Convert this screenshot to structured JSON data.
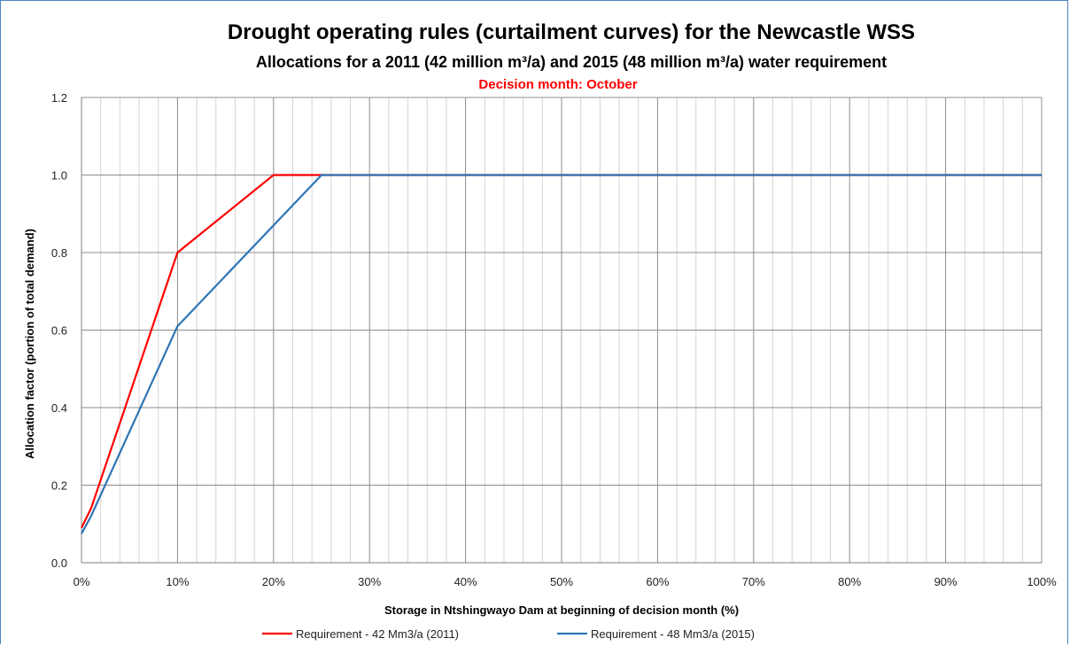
{
  "chart_data": {
    "type": "line",
    "title": "Drought operating rules (curtailment curves) for the Newcastle WSS",
    "subtitle": "Allocations for a 2011 (42 million m³/a) and 2015 (48 million m³/a) water requirement",
    "note": "Decision month: October",
    "xlabel": "Storage in Ntshingwayo Dam at beginning of decision month (%)",
    "ylabel": "Allocation factor (portion of total demand)",
    "xlim": [
      0,
      100
    ],
    "ylim": [
      0,
      1.2
    ],
    "x_ticks": [
      "0%",
      "10%",
      "20%",
      "30%",
      "40%",
      "50%",
      "60%",
      "70%",
      "80%",
      "90%",
      "100%"
    ],
    "y_ticks": [
      "0.0",
      "0.2",
      "0.4",
      "0.6",
      "0.8",
      "1.0",
      "1.2"
    ],
    "grid": true,
    "legend_position": "bottom",
    "series": [
      {
        "name": "Requirement - 42 Mm3/a (2011)",
        "color": "#ff0000",
        "points": [
          [
            0,
            0.09
          ],
          [
            1,
            0.14
          ],
          [
            10,
            0.8
          ],
          [
            20,
            1.0
          ],
          [
            100,
            1.0
          ]
        ]
      },
      {
        "name": "Requirement - 48 Mm3/a (2015)",
        "color": "#2e75b6",
        "points": [
          [
            0,
            0.075
          ],
          [
            1,
            0.12
          ],
          [
            10,
            0.61
          ],
          [
            25,
            1.0
          ],
          [
            100,
            1.0
          ]
        ]
      }
    ]
  }
}
